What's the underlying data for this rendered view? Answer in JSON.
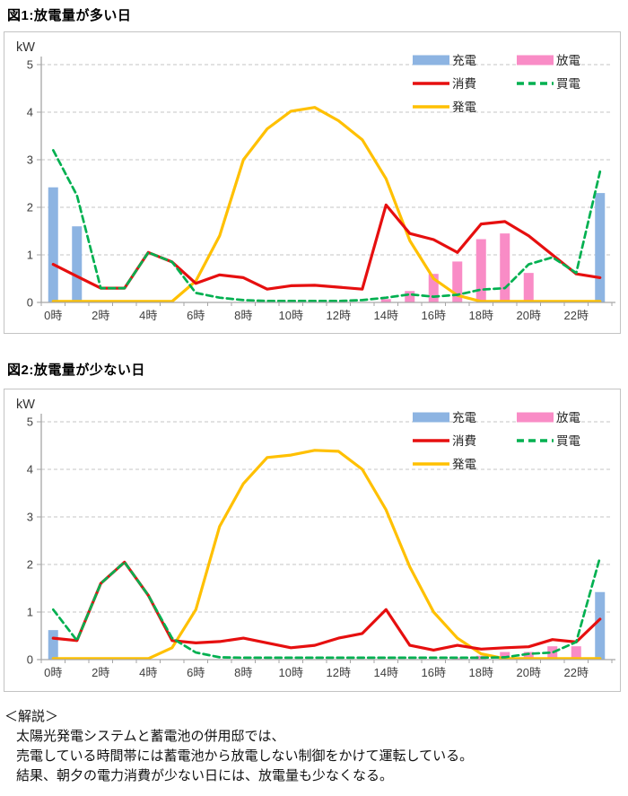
{
  "commentary": {
    "heading": "＜解説＞",
    "lines": [
      "太陽光発電システムと蓄電池の併用邸では、",
      "売電している時間帯には蓄電池から放電しない制御をかけて運転している。",
      "結果、朝夕の電力消費が少ない日には、放電量も少なくなる。"
    ]
  },
  "colors": {
    "charge_blue": "#8DB4E2",
    "discharge_pink": "#F98CC6",
    "consumption_red": "#E60F0F",
    "purchase_green": "#00B050",
    "generation_yellow": "#FFC000",
    "grid": "#C6C6C6",
    "axis": "#A6A6A6",
    "tick_text": "#3F3F3F"
  },
  "chart_data": [
    {
      "type": "bar-line-combo",
      "title": "図1:放電量が多い日",
      "ylabel": "kW",
      "ylim": [
        0,
        5
      ],
      "y_ticks": [
        0,
        1,
        2,
        3,
        4,
        5
      ],
      "grid": "horizontal-dashed",
      "legend_position": "top-right-inside",
      "x_hours": 24,
      "x_tick_labels": [
        "0時",
        "2時",
        "4時",
        "6時",
        "8時",
        "10時",
        "12時",
        "14時",
        "16時",
        "18時",
        "20時",
        "22時"
      ],
      "series": [
        {
          "key": "charge",
          "name": "充電",
          "type": "bar",
          "color": "#8DB4E2",
          "values": [
            2.42,
            1.6,
            0,
            0,
            0,
            0,
            0,
            0,
            0,
            0,
            0,
            0,
            0,
            0,
            0,
            0,
            0,
            0,
            0,
            0,
            0,
            0,
            0,
            2.3
          ]
        },
        {
          "key": "discharge",
          "name": "放電",
          "type": "bar",
          "color": "#F98CC6",
          "values": [
            0,
            0,
            0,
            0,
            0,
            0,
            0,
            0,
            0,
            0,
            0,
            0,
            0,
            0,
            0.07,
            0.24,
            0.6,
            0.86,
            1.33,
            1.45,
            0.62,
            0,
            0,
            0
          ]
        },
        {
          "key": "consumption",
          "name": "消費",
          "type": "line",
          "dash": false,
          "color": "#E60F0F",
          "values": [
            0.8,
            0.55,
            0.3,
            0.3,
            1.05,
            0.85,
            0.4,
            0.58,
            0.52,
            0.28,
            0.35,
            0.36,
            0.32,
            0.28,
            2.05,
            1.45,
            1.32,
            1.05,
            1.65,
            1.7,
            1.4,
            1.0,
            0.6,
            0.52
          ]
        },
        {
          "key": "purchase",
          "name": "買電",
          "type": "line",
          "dash": true,
          "color": "#00B050",
          "values": [
            3.2,
            2.25,
            0.3,
            0.3,
            1.05,
            0.85,
            0.2,
            0.1,
            0.05,
            0.03,
            0.03,
            0.03,
            0.03,
            0.05,
            0.1,
            0.17,
            0.12,
            0.16,
            0.27,
            0.3,
            0.8,
            0.95,
            0.62,
            2.75
          ]
        },
        {
          "key": "generation",
          "name": "発電",
          "type": "line",
          "dash": false,
          "color": "#FFC000",
          "values": [
            0.02,
            0.02,
            0.02,
            0.02,
            0.02,
            0.02,
            0.45,
            1.4,
            3.0,
            3.65,
            4.02,
            4.1,
            3.82,
            3.42,
            2.6,
            1.3,
            0.5,
            0.15,
            0.02,
            0.02,
            0.02,
            0.02,
            0.02,
            0.02
          ]
        }
      ]
    },
    {
      "type": "bar-line-combo",
      "title": "図2:放電量が少ない日",
      "ylabel": "kW",
      "ylim": [
        0,
        5
      ],
      "y_ticks": [
        0,
        1,
        2,
        3,
        4,
        5
      ],
      "grid": "horizontal-dashed",
      "legend_position": "top-right-inside",
      "x_hours": 24,
      "x_tick_labels": [
        "0時",
        "2時",
        "4時",
        "6時",
        "8時",
        "10時",
        "12時",
        "14時",
        "16時",
        "18時",
        "20時",
        "22時"
      ],
      "series": [
        {
          "key": "charge",
          "name": "充電",
          "type": "bar",
          "color": "#8DB4E2",
          "values": [
            0.62,
            0,
            0,
            0,
            0,
            0,
            0,
            0,
            0,
            0,
            0,
            0,
            0,
            0,
            0,
            0,
            0,
            0,
            0,
            0,
            0,
            0,
            0,
            1.42
          ]
        },
        {
          "key": "discharge",
          "name": "放電",
          "type": "bar",
          "color": "#F98CC6",
          "values": [
            0,
            0,
            0,
            0,
            0,
            0,
            0,
            0,
            0,
            0,
            0,
            0,
            0,
            0,
            0,
            0,
            0,
            0.03,
            0.08,
            0.16,
            0.16,
            0.28,
            0.28,
            0
          ]
        },
        {
          "key": "consumption",
          "name": "消費",
          "type": "line",
          "dash": false,
          "color": "#E60F0F",
          "values": [
            0.45,
            0.4,
            1.6,
            2.05,
            1.35,
            0.4,
            0.35,
            0.38,
            0.45,
            0.35,
            0.25,
            0.3,
            0.45,
            0.55,
            1.05,
            0.3,
            0.2,
            0.3,
            0.22,
            0.25,
            0.27,
            0.42,
            0.37,
            0.85
          ]
        },
        {
          "key": "purchase",
          "name": "買電",
          "type": "line",
          "dash": true,
          "color": "#00B050",
          "values": [
            1.05,
            0.4,
            1.6,
            2.05,
            1.35,
            0.45,
            0.15,
            0.05,
            0.04,
            0.04,
            0.04,
            0.04,
            0.04,
            0.04,
            0.04,
            0.04,
            0.04,
            0.04,
            0.04,
            0.05,
            0.12,
            0.15,
            0.37,
            2.15
          ]
        },
        {
          "key": "generation",
          "name": "発電",
          "type": "line",
          "dash": false,
          "color": "#FFC000",
          "values": [
            0.02,
            0.02,
            0.02,
            0.02,
            0.02,
            0.25,
            1.05,
            2.8,
            3.7,
            4.25,
            4.3,
            4.4,
            4.38,
            4.0,
            3.15,
            1.95,
            1.0,
            0.45,
            0.12,
            0.02,
            0.02,
            0.02,
            0.02,
            0.02
          ]
        }
      ]
    }
  ]
}
